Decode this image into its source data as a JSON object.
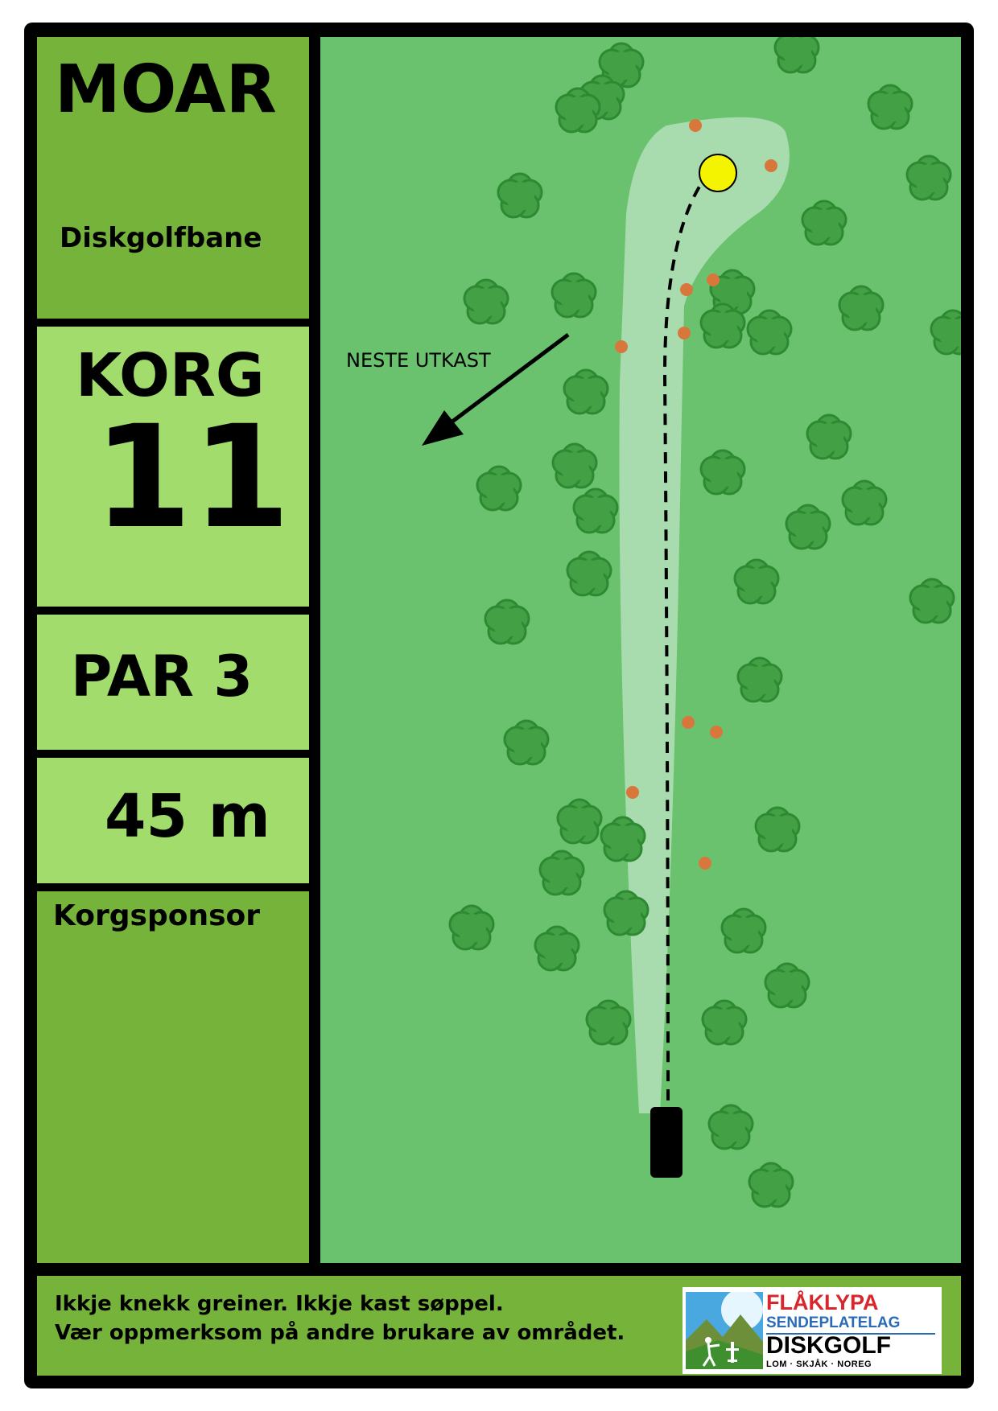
{
  "header": {
    "course_name": "MOAR",
    "course_type": "Diskgolfbane"
  },
  "hole": {
    "label": "KORG",
    "number": "11",
    "par": "PAR 3",
    "distance": "45 m"
  },
  "sponsor": {
    "label": "Korgsponsor"
  },
  "map": {
    "next_tee_label": "NESTE UTKAST",
    "fairway_color": "#a8dcae",
    "grass_color": "#6ac16e",
    "tree_color": "#44a044",
    "tree_outline": "#2e8a32",
    "basket_color": "#f4f400",
    "marker_color": "#d8773c"
  },
  "footer": {
    "rule_1": "Ikkje knekk greiner. Ikkje kast søppel.",
    "rule_2": "Vær oppmerksom på andre brukare av området."
  },
  "logo": {
    "line_1": "FLÅKLYPA",
    "line_2": "SENDEPLATELAG",
    "line_3": "DISKGOLF",
    "line_4": "LOM · SKJÅK · NOREG"
  }
}
